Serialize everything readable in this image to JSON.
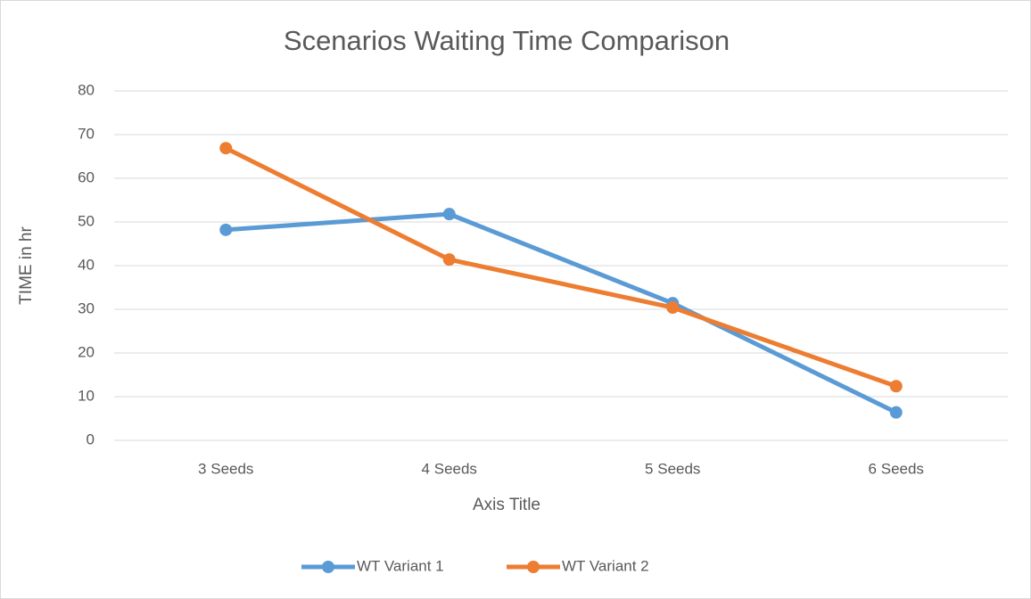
{
  "chart_data": {
    "type": "line",
    "title": "Scenarios Waiting Time Comparison",
    "x_label": "Axis Title",
    "y_label": "TIME in hr",
    "categories": [
      "3 Seeds",
      "4 Seeds",
      "5 Seeds",
      "6 Seeds"
    ],
    "series": [
      {
        "name": "WT Variant 1",
        "color": "#5b9bd5",
        "values": [
          48.2,
          51.8,
          31.4,
          6.4
        ]
      },
      {
        "name": "WT Variant 2",
        "color": "#ed7d31",
        "values": [
          66.9,
          41.4,
          30.4,
          12.4
        ]
      }
    ],
    "ylim": [
      0,
      80
    ],
    "yticks": [
      0,
      10,
      20,
      30,
      40,
      50,
      60,
      70,
      80
    ],
    "grid": true,
    "legend": "bottom"
  }
}
